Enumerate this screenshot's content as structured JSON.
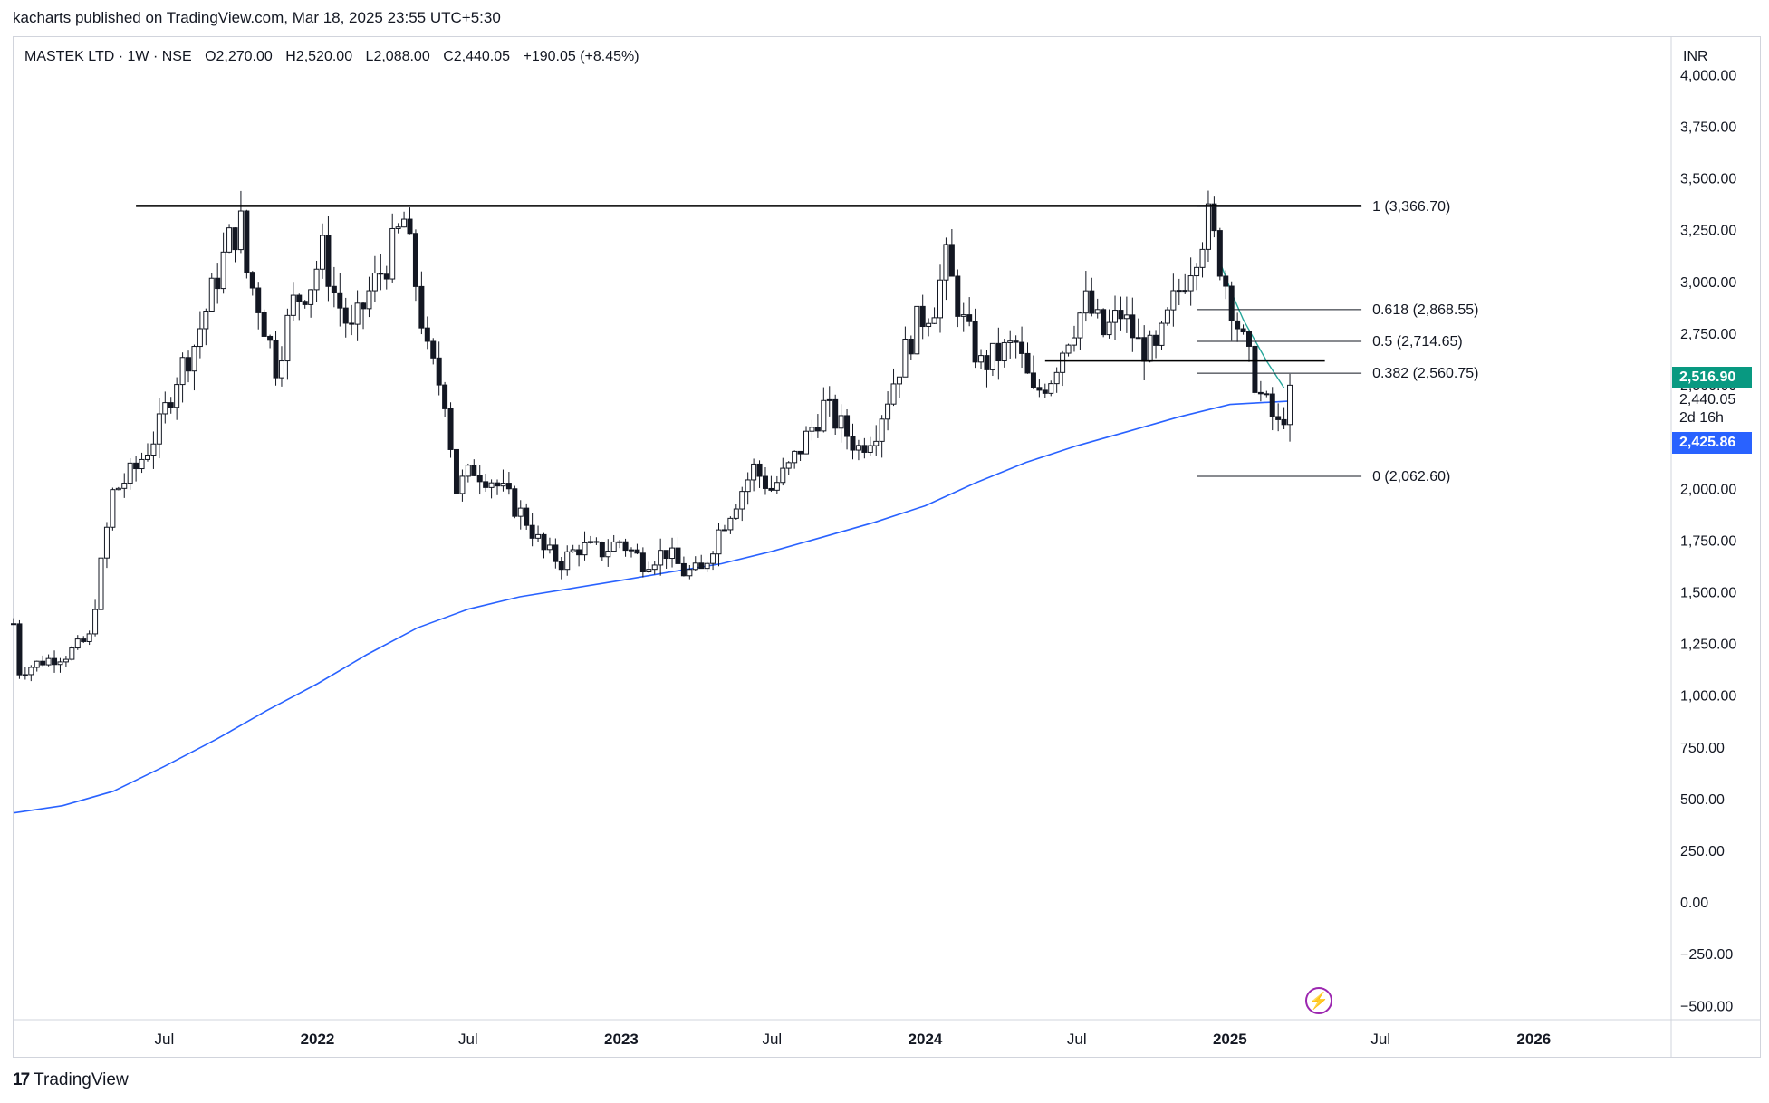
{
  "publish_line": "kacharts published on TradingView.com, Mar 18, 2025 23:55 UTC+5:30",
  "legend": {
    "symbol": "MASTEK LTD · 1W · NSE",
    "open": "O2,270.00",
    "high": "H2,520.00",
    "low": "L2,088.00",
    "close": "C2,440.05",
    "change": "+190.05 (+8.45%)"
  },
  "currency": "INR",
  "brand": "TradingView",
  "price_tags": {
    "last_price": "2,516.90",
    "close_value": "2,440.05",
    "countdown": "2d 16h",
    "ma_value": "2,425.86"
  },
  "colors": {
    "last_price_bg": "#089981",
    "ma_bg": "#2962ff",
    "ma_line": "#2962ff",
    "short_ma_line": "#26a69a",
    "candle": "#131722",
    "bolt": "#9c27b0"
  },
  "chart_data": {
    "type": "candlestick",
    "symbol": "MASTEK LTD",
    "interval": "1W",
    "y_ticks": [
      "4,000.00",
      "3,750.00",
      "3,500.00",
      "3,250.00",
      "3,000.00",
      "2,750.00",
      "2,500.00",
      "2,250.00",
      "2,000.00",
      "1,750.00",
      "1,500.00",
      "1,250.00",
      "1,000.00",
      "750.00",
      "500.00",
      "250.00",
      "0.00",
      "−250.00",
      "−500.00"
    ],
    "y_tick_values": [
      4000,
      3750,
      3500,
      3250,
      3000,
      2750,
      2500,
      2250,
      2000,
      1750,
      1500,
      1250,
      1000,
      750,
      500,
      250,
      0,
      -250,
      -500
    ],
    "ylim": [
      -560,
      4050
    ],
    "x_ticks": [
      {
        "label": "Jul",
        "date": "2021-07-01",
        "bold": false
      },
      {
        "label": "2022",
        "date": "2022-01-01",
        "bold": true
      },
      {
        "label": "Jul",
        "date": "2022-07-01",
        "bold": false
      },
      {
        "label": "2023",
        "date": "2023-01-01",
        "bold": true
      },
      {
        "label": "Jul",
        "date": "2023-07-01",
        "bold": false
      },
      {
        "label": "2024",
        "date": "2024-01-01",
        "bold": true
      },
      {
        "label": "Jul",
        "date": "2024-07-01",
        "bold": false
      },
      {
        "label": "2025",
        "date": "2025-01-01",
        "bold": true
      },
      {
        "label": "Jul",
        "date": "2025-07-01",
        "bold": false
      },
      {
        "label": "2026",
        "date": "2026-01-01",
        "bold": true
      }
    ],
    "xlim": [
      "2021-01-01",
      "2026-06-15"
    ],
    "series_points": [
      [
        "2021-01-01",
        1350
      ],
      [
        "2021-01-08",
        1120
      ],
      [
        "2021-02-05",
        1170
      ],
      [
        "2021-03-05",
        1200
      ],
      [
        "2021-04-02",
        1280
      ],
      [
        "2021-04-30",
        1980
      ],
      [
        "2021-05-28",
        2100
      ],
      [
        "2021-06-25",
        2300
      ],
      [
        "2021-07-16",
        2550
      ],
      [
        "2021-08-06",
        2700
      ],
      [
        "2021-08-27",
        2950
      ],
      [
        "2021-09-17",
        3200
      ],
      [
        "2021-10-01",
        3280
      ],
      [
        "2021-10-08",
        3050
      ],
      [
        "2021-10-22",
        2900
      ],
      [
        "2021-11-12",
        2600
      ],
      [
        "2021-12-03",
        2900
      ],
      [
        "2021-12-24",
        3000
      ],
      [
        "2022-01-07",
        3150
      ],
      [
        "2022-01-21",
        2950
      ],
      [
        "2022-02-11",
        2750
      ],
      [
        "2022-03-04",
        2950
      ],
      [
        "2022-03-25",
        3100
      ],
      [
        "2022-04-15",
        3300
      ],
      [
        "2022-04-29",
        3000
      ],
      [
        "2022-05-13",
        2650
      ],
      [
        "2022-06-03",
        2450
      ],
      [
        "2022-06-17",
        2000
      ],
      [
        "2022-07-08",
        2100
      ],
      [
        "2022-07-29",
        2050
      ],
      [
        "2022-08-19",
        1950
      ],
      [
        "2022-09-09",
        1850
      ],
      [
        "2022-09-30",
        1700
      ],
      [
        "2022-10-21",
        1650
      ],
      [
        "2022-11-11",
        1720
      ],
      [
        "2022-12-09",
        1700
      ],
      [
        "2022-12-30",
        1750
      ],
      [
        "2023-01-27",
        1650
      ],
      [
        "2023-02-24",
        1700
      ],
      [
        "2023-03-17",
        1600
      ],
      [
        "2023-04-07",
        1600
      ],
      [
        "2023-04-28",
        1800
      ],
      [
        "2023-05-19",
        1950
      ],
      [
        "2023-06-09",
        2100
      ],
      [
        "2023-06-30",
        2000
      ],
      [
        "2023-07-21",
        2100
      ],
      [
        "2023-08-11",
        2250
      ],
      [
        "2023-09-01",
        2400
      ],
      [
        "2023-09-22",
        2300
      ],
      [
        "2023-10-13",
        2200
      ],
      [
        "2023-11-03",
        2300
      ],
      [
        "2023-12-01",
        2600
      ],
      [
        "2023-12-22",
        2800
      ],
      [
        "2024-01-12",
        2900
      ],
      [
        "2024-01-26",
        3100
      ],
      [
        "2024-02-16",
        2800
      ],
      [
        "2024-03-08",
        2600
      ],
      [
        "2024-03-29",
        2650
      ],
      [
        "2024-04-19",
        2700
      ],
      [
        "2024-05-10",
        2450
      ],
      [
        "2024-05-31",
        2550
      ],
      [
        "2024-06-21",
        2750
      ],
      [
        "2024-07-12",
        2900
      ],
      [
        "2024-08-02",
        2750
      ],
      [
        "2024-08-23",
        2850
      ],
      [
        "2024-09-13",
        2700
      ],
      [
        "2024-10-04",
        2650
      ],
      [
        "2024-10-25",
        2900
      ],
      [
        "2024-11-15",
        3100
      ],
      [
        "2024-12-06",
        3300
      ],
      [
        "2024-12-27",
        3000
      ],
      [
        "2025-01-17",
        2700
      ],
      [
        "2025-02-07",
        2450
      ],
      [
        "2025-02-28",
        2300
      ],
      [
        "2025-03-14",
        2440
      ]
    ],
    "fib_levels": [
      {
        "label": "1 (3,366.70)",
        "value": 3366.7
      },
      {
        "label": "0.618 (2,868.55)",
        "value": 2868.55
      },
      {
        "label": "0.5 (2,714.65)",
        "value": 2714.65
      },
      {
        "label": "0.382 (2,560.75)",
        "value": 2560.75
      },
      {
        "label": "0 (2,062.60)",
        "value": 2062.6
      }
    ],
    "fib_start_date": "2024-11-22",
    "fib_end_date": "2025-06-08",
    "horizontal_lines": [
      {
        "value": 3370,
        "from": "2021-05-28",
        "to": "2025-06-08"
      },
      {
        "value": 2622,
        "from": "2024-05-24",
        "to": "2025-04-25"
      }
    ],
    "ma_long": [
      [
        "2021-01-01",
        435
      ],
      [
        "2021-03-01",
        470
      ],
      [
        "2021-05-01",
        540
      ],
      [
        "2021-07-01",
        660
      ],
      [
        "2021-09-01",
        790
      ],
      [
        "2021-11-01",
        930
      ],
      [
        "2022-01-01",
        1060
      ],
      [
        "2022-03-01",
        1200
      ],
      [
        "2022-05-01",
        1330
      ],
      [
        "2022-07-01",
        1420
      ],
      [
        "2022-09-01",
        1480
      ],
      [
        "2022-11-01",
        1520
      ],
      [
        "2023-01-01",
        1560
      ],
      [
        "2023-03-01",
        1600
      ],
      [
        "2023-05-01",
        1640
      ],
      [
        "2023-07-01",
        1700
      ],
      [
        "2023-09-01",
        1770
      ],
      [
        "2023-11-01",
        1840
      ],
      [
        "2024-01-01",
        1920
      ],
      [
        "2024-03-01",
        2030
      ],
      [
        "2024-05-01",
        2130
      ],
      [
        "2024-07-01",
        2210
      ],
      [
        "2024-09-01",
        2280
      ],
      [
        "2024-11-01",
        2350
      ],
      [
        "2025-01-01",
        2410
      ],
      [
        "2025-03-14",
        2426
      ]
    ],
    "ma_short": [
      [
        "2024-12-20",
        3100
      ],
      [
        "2025-01-03",
        2950
      ],
      [
        "2025-01-17",
        2820
      ],
      [
        "2025-01-31",
        2720
      ],
      [
        "2025-02-14",
        2620
      ],
      [
        "2025-03-07",
        2490
      ]
    ]
  }
}
